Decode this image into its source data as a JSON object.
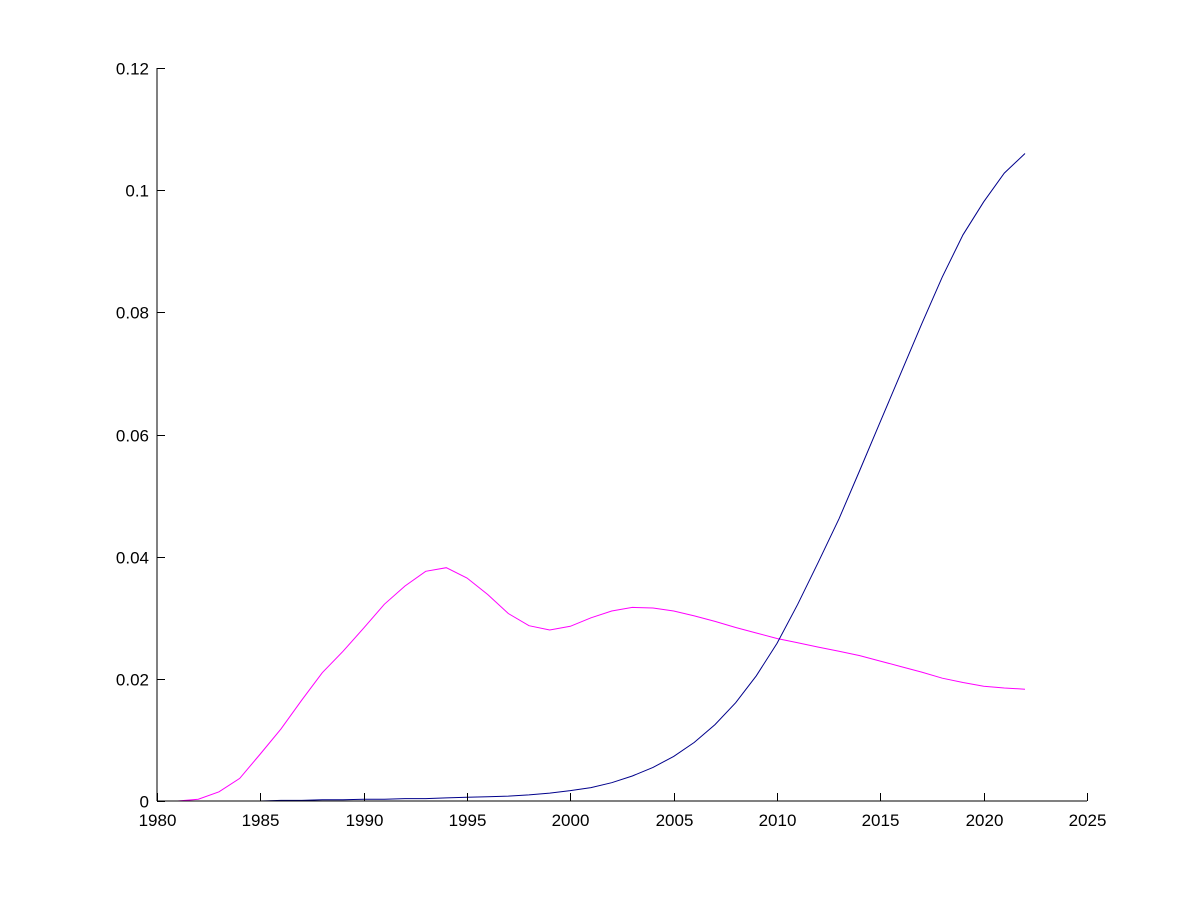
{
  "chart_data": {
    "type": "line",
    "title": "",
    "xlabel": "",
    "ylabel": "",
    "xlim": [
      1980,
      2025
    ],
    "ylim": [
      0,
      0.12
    ],
    "grid": false,
    "legend": "none",
    "x_ticks": [
      1980,
      1985,
      1990,
      1995,
      2000,
      2005,
      2010,
      2015,
      2020,
      2025
    ],
    "x_tick_labels": [
      "1980",
      "1985",
      "1990",
      "1995",
      "2000",
      "2005",
      "2010",
      "2015",
      "2020",
      "2025"
    ],
    "y_ticks": [
      0,
      0.02,
      0.04,
      0.06,
      0.08,
      0.1,
      0.12
    ],
    "y_tick_labels": [
      "0",
      "0.02",
      "0.04",
      "0.06",
      "0.08",
      "0.1",
      "0.12"
    ],
    "series": [
      {
        "color": "#ff00ff",
        "x": [
          1980,
          1981,
          1982,
          1983,
          1984,
          1985,
          1986,
          1987,
          1988,
          1989,
          1990,
          1991,
          1992,
          1993,
          1994,
          1995,
          1996,
          1997,
          1998,
          1999,
          2000,
          2001,
          2002,
          2003,
          2004,
          2005,
          2006,
          2007,
          2008,
          2009,
          2010,
          2011,
          2012,
          2013,
          2014,
          2015,
          2016,
          2017,
          2018,
          2019,
          2020,
          2021,
          2022
        ],
        "values": [
          0,
          0,
          0.0003,
          0.0015,
          0.0037,
          0.0077,
          0.0118,
          0.0165,
          0.021,
          0.0245,
          0.0283,
          0.0322,
          0.0352,
          0.0376,
          0.0382,
          0.0365,
          0.0338,
          0.0307,
          0.0287,
          0.028,
          0.0286,
          0.03,
          0.0311,
          0.0317,
          0.0316,
          0.0311,
          0.0303,
          0.0294,
          0.0284,
          0.0275,
          0.0266,
          0.0259,
          0.0252,
          0.0245,
          0.0238,
          0.0229,
          0.022,
          0.0211,
          0.0201,
          0.0194,
          0.0188,
          0.0185,
          0.0183
        ]
      },
      {
        "color": "#00008b",
        "x": [
          1980,
          1981,
          1982,
          1983,
          1984,
          1985,
          1986,
          1987,
          1988,
          1989,
          1990,
          1991,
          1992,
          1993,
          1994,
          1995,
          1996,
          1997,
          1998,
          1999,
          2000,
          2001,
          2002,
          2003,
          2004,
          2005,
          2006,
          2007,
          2008,
          2009,
          2010,
          2011,
          2012,
          2013,
          2014,
          2015,
          2016,
          2017,
          2018,
          2019,
          2020,
          2021,
          2022
        ],
        "values": [
          0,
          0,
          0,
          0,
          0,
          0,
          0.0001,
          0.0001,
          0.0002,
          0.0002,
          0.0003,
          0.0003,
          0.0004,
          0.0004,
          0.0005,
          0.0006,
          0.0007,
          0.0008,
          0.001,
          0.0013,
          0.0017,
          0.0022,
          0.003,
          0.0041,
          0.0055,
          0.0073,
          0.0096,
          0.0125,
          0.0161,
          0.0205,
          0.0258,
          0.0322,
          0.0391,
          0.0462,
          0.0541,
          0.0621,
          0.0701,
          0.0781,
          0.0858,
          0.0927,
          0.0981,
          0.1028,
          0.106
        ]
      }
    ]
  }
}
